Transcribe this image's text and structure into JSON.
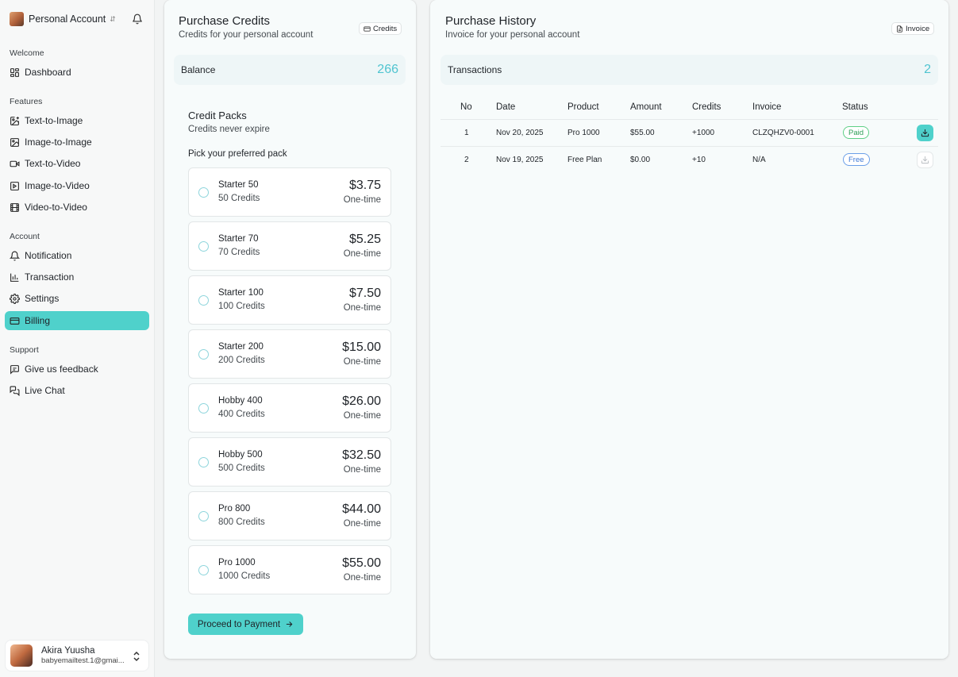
{
  "sidebar": {
    "account_name": "Personal Account",
    "sections": {
      "welcome": "Welcome",
      "features": "Features",
      "account": "Account",
      "support": "Support"
    },
    "items": {
      "dashboard": "Dashboard",
      "text_to_image": "Text-to-Image",
      "image_to_image": "Image-to-Image",
      "text_to_video": "Text-to-Video",
      "image_to_video": "Image-to-Video",
      "video_to_video": "Video-to-Video",
      "notification": "Notification",
      "transaction": "Transaction",
      "settings": "Settings",
      "billing": "Billing",
      "feedback": "Give us feedback",
      "live_chat": "Live Chat"
    },
    "active_item": "Billing",
    "user": {
      "name": "Akira Yuusha",
      "email": "babyemailtest.1@gmai..."
    }
  },
  "purchase_credits": {
    "title": "Purchase Credits",
    "subtitle": "Credits for your personal account",
    "chip": "Credits",
    "balance_label": "Balance",
    "balance_value": "266",
    "packs_title": "Credit Packs",
    "packs_subtitle": "Credits never expire",
    "pick_label": "Pick your preferred pack",
    "packs": [
      {
        "name": "Starter 50",
        "credits": "50 Credits",
        "price": "$3.75",
        "type": "One-time"
      },
      {
        "name": "Starter 70",
        "credits": "70 Credits",
        "price": "$5.25",
        "type": "One-time"
      },
      {
        "name": "Starter 100",
        "credits": "100 Credits",
        "price": "$7.50",
        "type": "One-time"
      },
      {
        "name": "Starter 200",
        "credits": "200 Credits",
        "price": "$15.00",
        "type": "One-time"
      },
      {
        "name": "Hobby 400",
        "credits": "400 Credits",
        "price": "$26.00",
        "type": "One-time"
      },
      {
        "name": "Hobby 500",
        "credits": "500 Credits",
        "price": "$32.50",
        "type": "One-time"
      },
      {
        "name": "Pro 800",
        "credits": "800 Credits",
        "price": "$44.00",
        "type": "One-time"
      },
      {
        "name": "Pro 1000",
        "credits": "1000 Credits",
        "price": "$55.00",
        "type": "One-time"
      }
    ],
    "proceed_label": "Proceed to Payment"
  },
  "purchase_history": {
    "title": "Purchase History",
    "subtitle": "Invoice for your personal account",
    "chip": "Invoice",
    "transactions_label": "Transactions",
    "transactions_count": "2",
    "columns": {
      "no": "No",
      "date": "Date",
      "product": "Product",
      "amount": "Amount",
      "credits": "Credits",
      "invoice": "Invoice",
      "status": "Status"
    },
    "rows": [
      {
        "no": "1",
        "date": "Nov 20, 2025",
        "product": "Pro 1000",
        "amount": "$55.00",
        "credits": "+1000",
        "invoice": "CLZQHZV0-0001",
        "status": "Paid"
      },
      {
        "no": "2",
        "date": "Nov 19, 2025",
        "product": "Free Plan",
        "amount": "$0.00",
        "credits": "+10",
        "invoice": "N/A",
        "status": "Free"
      }
    ]
  },
  "colors": {
    "accent": "#4fd1cb",
    "balance_text": "#4fc4d0",
    "paid": "#2e9e57",
    "free": "#3f7ad6"
  }
}
